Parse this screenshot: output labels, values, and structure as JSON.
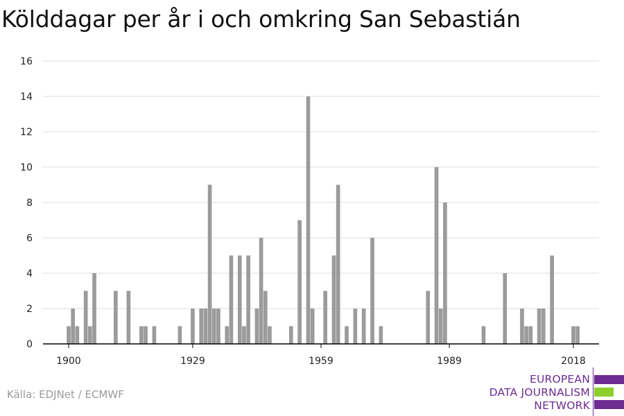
{
  "title": "Kölddagar per år i och omkring San Sebastián",
  "source": "Källa: EDJNet / ECMWF",
  "logo": {
    "lines": [
      "EUROPEAN",
      "DATA JOURNALISM",
      "NETWORK"
    ],
    "colors": {
      "purple": "#6c2c91",
      "green": "#8ccf2c"
    }
  },
  "colors": {
    "bar": "#9b9b9b",
    "grid": "#dddddd",
    "axis": "#000000"
  },
  "chart_data": {
    "type": "bar",
    "title": "Kölddagar per år i och omkring San Sebastián",
    "xlabel": "",
    "ylabel": "",
    "ylim": [
      0,
      16
    ],
    "yticks": [
      0,
      2,
      4,
      6,
      8,
      10,
      12,
      14,
      16
    ],
    "xticks": [
      1900,
      1929,
      1959,
      1989,
      2018
    ],
    "xlim": [
      1894,
      2024
    ],
    "grid": true,
    "x": [
      1900,
      1901,
      1902,
      1903,
      1904,
      1905,
      1906,
      1907,
      1908,
      1909,
      1910,
      1911,
      1912,
      1913,
      1914,
      1915,
      1916,
      1917,
      1918,
      1919,
      1920,
      1921,
      1922,
      1923,
      1924,
      1925,
      1926,
      1927,
      1928,
      1929,
      1930,
      1931,
      1932,
      1933,
      1934,
      1935,
      1936,
      1937,
      1938,
      1939,
      1940,
      1941,
      1942,
      1943,
      1944,
      1945,
      1946,
      1947,
      1948,
      1949,
      1950,
      1951,
      1952,
      1953,
      1954,
      1955,
      1956,
      1957,
      1958,
      1959,
      1960,
      1961,
      1962,
      1963,
      1964,
      1965,
      1966,
      1967,
      1968,
      1969,
      1970,
      1971,
      1972,
      1973,
      1974,
      1975,
      1976,
      1977,
      1978,
      1979,
      1980,
      1981,
      1982,
      1983,
      1984,
      1985,
      1986,
      1987,
      1988,
      1989,
      1990,
      1991,
      1992,
      1993,
      1994,
      1995,
      1996,
      1997,
      1998,
      1999,
      2000,
      2001,
      2002,
      2003,
      2004,
      2005,
      2006,
      2007,
      2008,
      2009,
      2010,
      2011,
      2012,
      2013,
      2014,
      2015,
      2016,
      2017,
      2018,
      2019
    ],
    "values": [
      1,
      2,
      1,
      0,
      3,
      1,
      4,
      0,
      0,
      0,
      0,
      3,
      0,
      0,
      3,
      0,
      0,
      1,
      1,
      0,
      1,
      0,
      0,
      0,
      0,
      0,
      1,
      0,
      0,
      2,
      0,
      2,
      2,
      9,
      2,
      2,
      0,
      1,
      5,
      0,
      5,
      1,
      5,
      0,
      2,
      6,
      3,
      1,
      0,
      0,
      0,
      0,
      1,
      0,
      7,
      0,
      14,
      2,
      0,
      0,
      3,
      0,
      5,
      9,
      0,
      1,
      0,
      2,
      0,
      2,
      0,
      6,
      0,
      1,
      0,
      0,
      0,
      0,
      0,
      0,
      0,
      0,
      0,
      0,
      3,
      0,
      10,
      2,
      8,
      0,
      0,
      0,
      0,
      0,
      0,
      0,
      0,
      1,
      0,
      0,
      0,
      0,
      4,
      0,
      0,
      0,
      2,
      1,
      1,
      0,
      2,
      2,
      0,
      5,
      0,
      0,
      0,
      0,
      1,
      1
    ]
  }
}
